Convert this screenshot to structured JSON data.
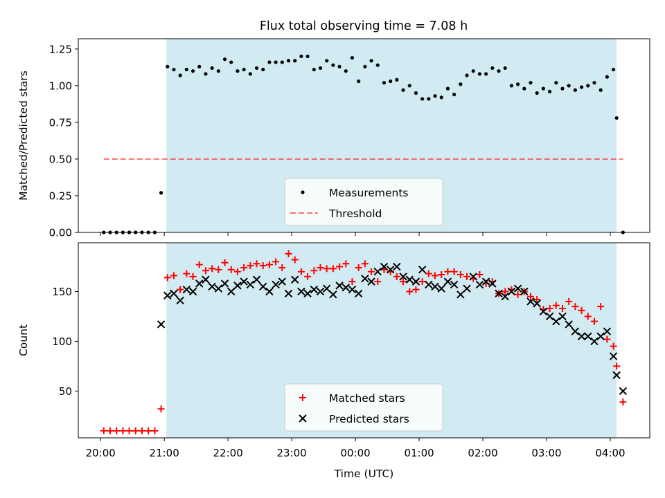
{
  "figure": {
    "title": "Flux total observing time = 7.08 h"
  },
  "colors": {
    "shade": "#add8e6",
    "threshold": "#ff0000",
    "matched": "#ff0000",
    "predicted": "#000000",
    "measurement": "#000000"
  },
  "chart_data": [
    {
      "type": "scatter",
      "id": "ratio",
      "title": "Flux total observing time = 7.08 h",
      "xlabel": "",
      "ylabel": "Matched/Predicted stars",
      "x_unit": "hours since 20:00 UTC",
      "xlim": [
        -0.35,
        8.62
      ],
      "ylim": [
        0,
        1.32
      ],
      "yticks": [
        0,
        0.25,
        0.5,
        0.75,
        1.0,
        1.25
      ],
      "ytick_labels": [
        "0.00",
        "0.25",
        "0.50",
        "0.75",
        "1.00",
        "1.25"
      ],
      "xticks": [
        0,
        1,
        2,
        3,
        4,
        5,
        6,
        7,
        8
      ],
      "shaded_interval": [
        "21:02",
        "04:06"
      ],
      "legend": {
        "position": "lower-center",
        "entries": [
          "Measurements",
          "Threshold"
        ]
      },
      "threshold": {
        "name": "Threshold",
        "y": 0.5,
        "x_range": [
          "20:03",
          "04:12"
        ]
      },
      "series": [
        {
          "name": "Measurements",
          "marker": "dot",
          "x": [
            "20:03",
            "20:09",
            "20:15",
            "20:21",
            "20:27",
            "20:33",
            "20:39",
            "20:45",
            "20:51",
            "20:57",
            "21:03",
            "21:09",
            "21:15",
            "21:21",
            "21:27",
            "21:33",
            "21:39",
            "21:45",
            "21:51",
            "21:57",
            "22:03",
            "22:09",
            "22:15",
            "22:21",
            "22:27",
            "22:33",
            "22:39",
            "22:45",
            "22:51",
            "22:57",
            "23:03",
            "23:09",
            "23:15",
            "23:21",
            "23:27",
            "23:33",
            "23:39",
            "23:45",
            "23:51",
            "23:57",
            "00:03",
            "00:09",
            "00:15",
            "00:21",
            "00:27",
            "00:33",
            "00:39",
            "00:45",
            "00:51",
            "00:57",
            "01:03",
            "01:09",
            "01:15",
            "01:21",
            "01:27",
            "01:33",
            "01:39",
            "01:45",
            "01:51",
            "01:57",
            "02:03",
            "02:09",
            "02:15",
            "02:21",
            "02:27",
            "02:33",
            "02:39",
            "02:45",
            "02:51",
            "02:57",
            "03:03",
            "03:09",
            "03:15",
            "03:21",
            "03:27",
            "03:33",
            "03:39",
            "03:45",
            "03:51",
            "03:57",
            "04:03",
            "04:06",
            "04:12"
          ],
          "y": [
            0.0,
            0.0,
            0.0,
            0.0,
            0.0,
            0.0,
            0.0,
            0.0,
            0.0,
            0.27,
            1.13,
            1.11,
            1.07,
            1.11,
            1.1,
            1.13,
            1.08,
            1.12,
            1.1,
            1.18,
            1.16,
            1.1,
            1.11,
            1.08,
            1.12,
            1.11,
            1.16,
            1.16,
            1.16,
            1.17,
            1.17,
            1.2,
            1.2,
            1.11,
            1.12,
            1.17,
            1.14,
            1.13,
            1.1,
            1.19,
            1.03,
            1.13,
            1.17,
            1.14,
            1.02,
            1.03,
            1.04,
            0.97,
            1.0,
            0.95,
            0.91,
            0.91,
            0.93,
            0.92,
            0.98,
            0.94,
            1.01,
            1.07,
            1.1,
            1.08,
            1.08,
            1.12,
            1.1,
            1.12,
            1.0,
            1.01,
            0.98,
            1.02,
            0.95,
            0.98,
            0.96,
            1.02,
            0.98,
            1.0,
            0.97,
            0.99,
            1.0,
            1.02,
            0.97,
            1.06,
            1.11,
            0.78,
            0.0
          ]
        }
      ]
    },
    {
      "type": "scatter",
      "id": "counts",
      "title": "",
      "xlabel": "Time (UTC)",
      "ylabel": "Count",
      "x_unit": "hours since 20:00 UTC",
      "xlim": [
        -0.35,
        8.62
      ],
      "ylim": [
        3,
        199
      ],
      "yticks": [
        50,
        100,
        150
      ],
      "ytick_labels": [
        "50",
        "100",
        "150"
      ],
      "xticks": [
        0,
        1,
        2,
        3,
        4,
        5,
        6,
        7,
        8
      ],
      "xtick_labels": [
        "20:00",
        "21:00",
        "22:00",
        "23:00",
        "00:00",
        "01:00",
        "02:00",
        "03:00",
        "04:00"
      ],
      "shaded_interval": [
        "21:02",
        "04:06"
      ],
      "legend": {
        "position": "lower-center",
        "entries": [
          "Matched stars",
          "Predicted stars"
        ]
      },
      "series": [
        {
          "name": "Matched stars",
          "marker": "plus",
          "x": [
            "20:03",
            "20:09",
            "20:15",
            "20:21",
            "20:27",
            "20:33",
            "20:39",
            "20:45",
            "20:51",
            "20:57",
            "21:03",
            "21:09",
            "21:15",
            "21:21",
            "21:27",
            "21:33",
            "21:39",
            "21:45",
            "21:51",
            "21:57",
            "22:03",
            "22:09",
            "22:15",
            "22:21",
            "22:27",
            "22:33",
            "22:39",
            "22:45",
            "22:51",
            "22:57",
            "23:03",
            "23:09",
            "23:15",
            "23:21",
            "23:27",
            "23:33",
            "23:39",
            "23:45",
            "23:51",
            "23:57",
            "00:03",
            "00:09",
            "00:15",
            "00:21",
            "00:27",
            "00:33",
            "00:39",
            "00:45",
            "00:51",
            "00:57",
            "01:03",
            "01:09",
            "01:15",
            "01:21",
            "01:27",
            "01:33",
            "01:39",
            "01:45",
            "01:51",
            "01:57",
            "02:03",
            "02:09",
            "02:15",
            "02:21",
            "02:27",
            "02:33",
            "02:39",
            "02:45",
            "02:51",
            "02:57",
            "03:03",
            "03:09",
            "03:15",
            "03:21",
            "03:27",
            "03:33",
            "03:39",
            "03:45",
            "03:51",
            "03:57",
            "04:03",
            "04:06",
            "04:12"
          ],
          "y": [
            10,
            10,
            10,
            10,
            10,
            10,
            10,
            10,
            10,
            32,
            164,
            166,
            152,
            168,
            165,
            177,
            171,
            173,
            172,
            179,
            172,
            170,
            174,
            176,
            178,
            176,
            177,
            180,
            174,
            188,
            182,
            170,
            165,
            171,
            174,
            173,
            173,
            175,
            178,
            160,
            174,
            178,
            170,
            160,
            172,
            170,
            165,
            160,
            150,
            152,
            160,
            168,
            166,
            167,
            170,
            170,
            167,
            165,
            163,
            167,
            158,
            160,
            148,
            150,
            152,
            147,
            150,
            145,
            142,
            132,
            133,
            136,
            133,
            140,
            135,
            131,
            125,
            120,
            135,
            102,
            95,
            75,
            39
          ]
        },
        {
          "name": "Predicted stars",
          "marker": "x",
          "x": [
            "20:57",
            "21:03",
            "21:09",
            "21:15",
            "21:21",
            "21:27",
            "21:33",
            "21:39",
            "21:45",
            "21:51",
            "21:57",
            "22:03",
            "22:09",
            "22:15",
            "22:21",
            "22:27",
            "22:33",
            "22:39",
            "22:45",
            "22:51",
            "22:57",
            "23:03",
            "23:09",
            "23:15",
            "23:21",
            "23:27",
            "23:33",
            "23:39",
            "23:45",
            "23:51",
            "23:57",
            "00:03",
            "00:09",
            "00:15",
            "00:21",
            "00:27",
            "00:33",
            "00:39",
            "00:45",
            "00:51",
            "00:57",
            "01:03",
            "01:09",
            "01:15",
            "01:21",
            "01:27",
            "01:33",
            "01:39",
            "01:45",
            "01:51",
            "01:57",
            "02:03",
            "02:09",
            "02:15",
            "02:21",
            "02:27",
            "02:33",
            "02:39",
            "02:45",
            "02:51",
            "02:57",
            "03:03",
            "03:09",
            "03:15",
            "03:21",
            "03:27",
            "03:33",
            "03:39",
            "03:45",
            "03:51",
            "03:57",
            "04:03",
            "04:06",
            "04:12"
          ],
          "y": [
            117,
            146,
            148,
            141,
            152,
            150,
            158,
            162,
            155,
            153,
            158,
            150,
            156,
            160,
            157,
            162,
            155,
            150,
            157,
            160,
            148,
            162,
            150,
            148,
            152,
            150,
            153,
            147,
            156,
            154,
            152,
            148,
            163,
            160,
            170,
            175,
            172,
            175,
            165,
            162,
            160,
            172,
            157,
            155,
            153,
            160,
            157,
            147,
            153,
            165,
            157,
            160,
            158,
            148,
            145,
            150,
            153,
            150,
            140,
            138,
            130,
            125,
            120,
            125,
            117,
            110,
            105,
            105,
            100,
            105,
            110,
            85,
            66,
            50
          ]
        }
      ]
    }
  ]
}
